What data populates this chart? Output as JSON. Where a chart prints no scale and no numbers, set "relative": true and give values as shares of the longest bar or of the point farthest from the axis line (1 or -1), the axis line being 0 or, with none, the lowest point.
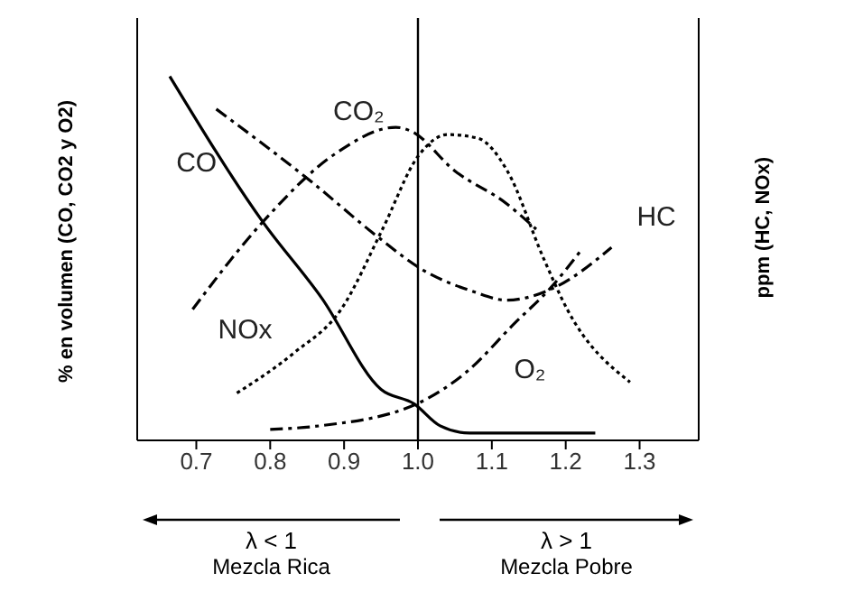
{
  "chart_data": {
    "type": "line",
    "relative": true,
    "ylabel": "% en volumen (CO, CO2 y O2)",
    "y2label": "ppm (HC, NOx)",
    "xlim": [
      0.62,
      1.38
    ],
    "xticks": [
      {
        "value": 0.7,
        "label": "0.7"
      },
      {
        "value": 0.8,
        "label": "0.8"
      },
      {
        "value": 0.9,
        "label": "0.9"
      },
      {
        "value": 1.0,
        "label": "1.0"
      },
      {
        "value": 1.1,
        "label": "1.1"
      },
      {
        "value": 1.2,
        "label": "1.2"
      },
      {
        "value": 1.3,
        "label": "1.3"
      }
    ],
    "marker": "none",
    "ref_lines": [
      {
        "axis": "x",
        "value": 1.0,
        "color": "#000000"
      }
    ],
    "annotations": [
      "λ < 1",
      "Mezcla Rica",
      "λ > 1",
      "Mezcla Pobre"
    ],
    "series": [
      {
        "name": "CO",
        "color": "#000000",
        "line_style": "solid",
        "x": [
          0.664,
          0.79,
          0.87,
          0.95,
          0.995,
          1.03,
          1.07,
          1.24
        ],
        "values": [
          1.0,
          0.6,
          0.39,
          0.14,
          0.1,
          0.04,
          0.02,
          0.02
        ]
      },
      {
        "name": "CO₂",
        "color": "#000000",
        "line_style": "dashed",
        "x": [
          0.695,
          0.79,
          0.89,
          0.97,
          0.99,
          1.05,
          1.12,
          1.16
        ],
        "values": [
          0.36,
          0.6,
          0.79,
          0.86,
          0.85,
          0.74,
          0.65,
          0.58
        ]
      },
      {
        "name": "HC",
        "color": "#000000",
        "line_style": "dashed",
        "x": [
          0.727,
          0.856,
          0.945,
          1.005,
          1.073,
          1.12,
          1.185,
          1.262
        ],
        "values": [
          0.91,
          0.71,
          0.56,
          0.47,
          0.41,
          0.385,
          0.42,
          0.53
        ]
      },
      {
        "name": "NOx",
        "color": "#000000",
        "line_style": "dotted",
        "x": [
          0.755,
          0.832,
          0.896,
          0.952,
          1.0,
          1.04,
          1.081,
          1.121,
          1.17,
          1.202,
          1.287
        ],
        "values": [
          0.13,
          0.24,
          0.36,
          0.58,
          0.78,
          0.84,
          0.83,
          0.74,
          0.5,
          0.36,
          0.16
        ]
      },
      {
        "name": "O₂",
        "color": "#000000",
        "line_style": "dashed",
        "x": [
          0.8,
          0.867,
          0.998,
          1.067,
          1.13,
          1.18,
          1.22
        ],
        "values": [
          0.03,
          0.04,
          0.1,
          0.19,
          0.32,
          0.42,
          0.52
        ]
      }
    ]
  }
}
